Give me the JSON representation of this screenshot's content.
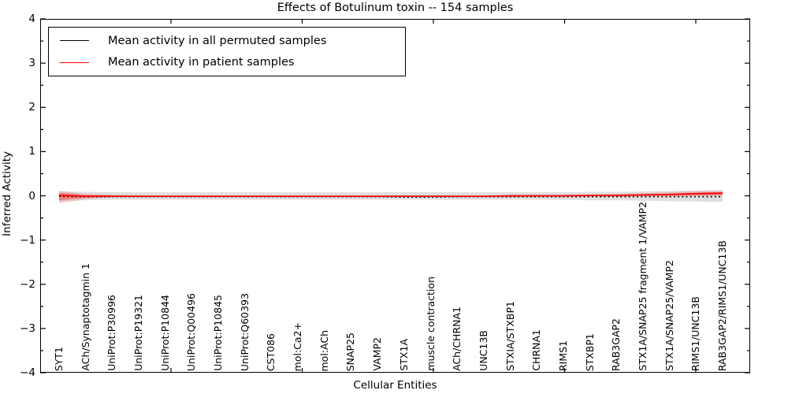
{
  "title": "Effects of Botulinum toxin -- 154 samples",
  "legend": {
    "items": [
      {
        "label": "Mean activity in all permuted samples",
        "color": "#000000"
      },
      {
        "label": "Mean activity in patient samples",
        "color": "#ff0000"
      }
    ]
  },
  "chart_data": {
    "type": "line",
    "title": "Effects of Botulinum toxin -- 154 samples",
    "xlabel": "Cellular Entities",
    "ylabel": "Inferred Activity",
    "ylim": [
      -4,
      4
    ],
    "grid": false,
    "legend_position": "upper left",
    "ytick_labels": [
      "4",
      "3",
      "2",
      "1",
      "0",
      "−1",
      "−2",
      "−3",
      "−4"
    ],
    "categories": [
      "SYT1",
      "ACh/Synaptotagmin 1",
      "UniProt:P30996",
      "UniProt:P19321",
      "UniProt:P10844",
      "UniProt:Q00496",
      "UniProt:P10845",
      "UniProt:Q60393",
      "CST086",
      "mol:Ca2+",
      "mol:ACh",
      "SNAP25",
      "VAMP2",
      "STX1A",
      "muscle contraction",
      "ACh/CHRNA1",
      "UNC13B",
      "STXIA/STXBP1",
      "CHRNA1",
      "RIMS1",
      "STXBP1",
      "RAB3GAP2",
      "STX1A/SNAP25 fragment 1/VAMP2",
      "STX1A/SNAP25/VAMP2",
      "RIMS1/UNC13B",
      "RAB3GAP2/RIMS1/UNC13B"
    ],
    "series": [
      {
        "name": "Mean activity in all permuted samples",
        "color": "#000000",
        "style": "dotted",
        "values": [
          -0.01,
          -0.02,
          -0.02,
          -0.02,
          -0.02,
          -0.02,
          -0.02,
          -0.02,
          -0.02,
          -0.02,
          -0.02,
          -0.02,
          -0.02,
          -0.03,
          -0.03,
          -0.02,
          -0.02,
          -0.02,
          -0.02,
          -0.02,
          -0.02,
          -0.02,
          -0.02,
          -0.02,
          -0.02,
          -0.02
        ]
      },
      {
        "name": "Mean activity in patient samples",
        "color": "#ff0000",
        "style": "solid",
        "values": [
          0.01,
          -0.01,
          -0.01,
          -0.01,
          -0.01,
          -0.01,
          -0.01,
          -0.01,
          -0.01,
          -0.01,
          -0.01,
          -0.01,
          -0.01,
          -0.01,
          -0.01,
          -0.01,
          -0.01,
          0.0,
          0.0,
          0.0,
          0.01,
          0.01,
          0.02,
          0.03,
          0.05,
          0.06
        ]
      }
    ],
    "bands": [
      {
        "name": "permuted-std-band",
        "color": "rgba(110,110,110,0.22)",
        "upper": [
          0.1,
          0.09,
          0.08,
          0.08,
          0.08,
          0.08,
          0.08,
          0.08,
          0.08,
          0.08,
          0.08,
          0.08,
          0.08,
          0.08,
          0.08,
          0.08,
          0.08,
          0.08,
          0.08,
          0.08,
          0.09,
          0.09,
          0.1,
          0.11,
          0.12,
          0.13
        ],
        "lower": [
          -0.12,
          -0.1,
          -0.09,
          -0.09,
          -0.09,
          -0.09,
          -0.09,
          -0.09,
          -0.09,
          -0.09,
          -0.09,
          -0.09,
          -0.09,
          -0.09,
          -0.09,
          -0.09,
          -0.09,
          -0.09,
          -0.09,
          -0.09,
          -0.1,
          -0.1,
          -0.11,
          -0.12,
          -0.13,
          -0.14
        ]
      },
      {
        "name": "patient-band-outer",
        "color": "rgba(255,0,0,0.18)",
        "upper": [
          0.11,
          0.04,
          0.02,
          0.01,
          0.01,
          0.01,
          0.01,
          0.01,
          0.01,
          0.01,
          0.01,
          0.01,
          0.01,
          0.01,
          0.01,
          0.01,
          0.01,
          0.01,
          0.02,
          0.02,
          0.03,
          0.04,
          0.06,
          0.08,
          0.1,
          0.11
        ],
        "lower": [
          -0.17,
          -0.07,
          -0.03,
          -0.03,
          -0.03,
          -0.03,
          -0.03,
          -0.03,
          -0.03,
          -0.03,
          -0.03,
          -0.03,
          -0.03,
          -0.03,
          -0.03,
          -0.03,
          -0.03,
          -0.03,
          -0.02,
          -0.02,
          -0.02,
          -0.02,
          -0.01,
          -0.01,
          0.0,
          0.0
        ]
      },
      {
        "name": "patient-band-inner",
        "color": "rgba(255,0,0,0.32)",
        "upper": [
          0.06,
          0.02,
          0.01,
          0.01,
          0.0,
          0.0,
          0.0,
          0.0,
          0.0,
          0.0,
          0.0,
          0.0,
          0.0,
          0.0,
          0.0,
          0.0,
          0.0,
          0.0,
          0.01,
          0.01,
          0.02,
          0.02,
          0.03,
          0.05,
          0.07,
          0.08
        ],
        "lower": [
          -0.1,
          -0.04,
          -0.02,
          -0.02,
          -0.02,
          -0.02,
          -0.02,
          -0.02,
          -0.02,
          -0.02,
          -0.02,
          -0.02,
          -0.02,
          -0.02,
          -0.02,
          -0.02,
          -0.02,
          -0.02,
          -0.02,
          -0.01,
          -0.01,
          -0.01,
          0.0,
          0.0,
          0.01,
          0.02
        ]
      }
    ]
  }
}
